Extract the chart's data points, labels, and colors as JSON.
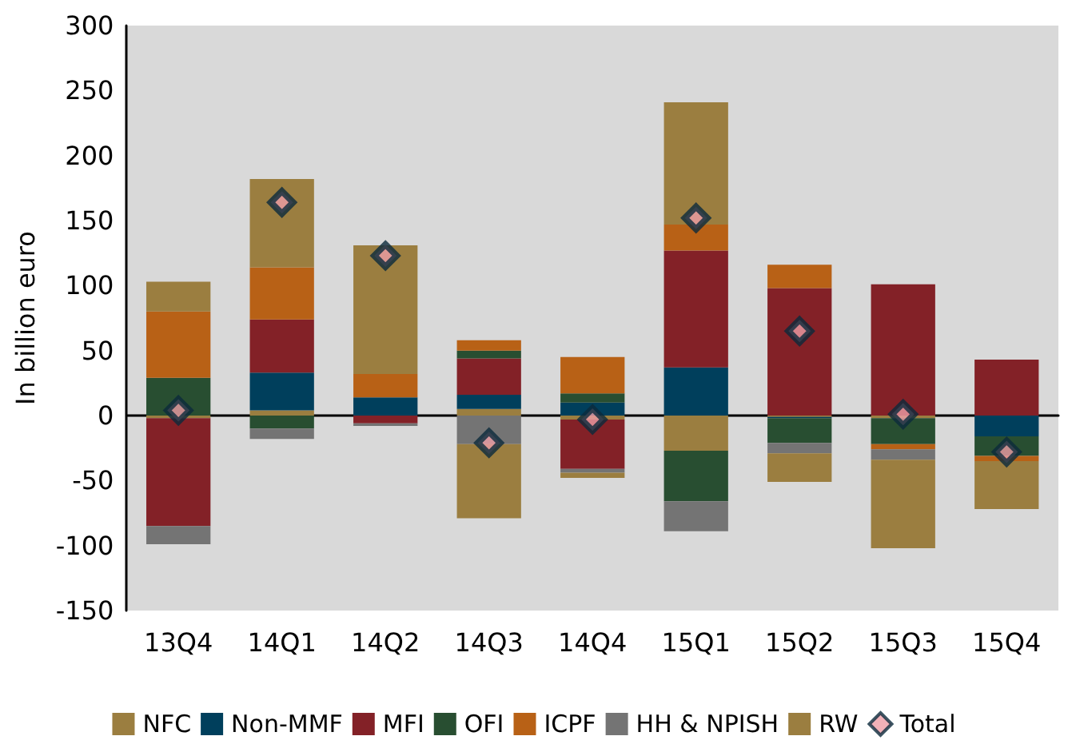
{
  "chart_data": {
    "type": "bar",
    "stacked": true,
    "ylabel": "In billion euro",
    "categories": [
      "13Q4",
      "14Q1",
      "14Q2",
      "14Q3",
      "14Q4",
      "15Q1",
      "15Q2",
      "15Q3",
      "15Q4"
    ],
    "series": [
      {
        "name": "NFC",
        "color": "#9b7e40",
        "values": [
          -2,
          4,
          0,
          5,
          -3,
          -27,
          -1,
          -2,
          0
        ]
      },
      {
        "name": "Non-MMF",
        "color": "#003f5c",
        "values": [
          0,
          29,
          14,
          11,
          10,
          37,
          -1,
          null,
          -16
        ]
      },
      {
        "name": "MFI",
        "color": "#832127",
        "values": [
          -83,
          41,
          -6,
          28,
          -38,
          90,
          98,
          101,
          43
        ]
      },
      {
        "name": "OFI",
        "color": "#284e31",
        "values": [
          29,
          -10,
          0,
          6,
          7,
          -39,
          -19,
          -20,
          -15
        ]
      },
      {
        "name": "ICPF",
        "color": "#b86116",
        "values": [
          51,
          40,
          18,
          8,
          28,
          20,
          18,
          -4,
          -4
        ]
      },
      {
        "name": "HH & NPISH",
        "color": "#747474",
        "values": [
          -14,
          -8,
          -2,
          -22,
          -3,
          -23,
          -8,
          -8,
          0
        ]
      },
      {
        "name": "RW",
        "color": "#9b7e40",
        "values": [
          23,
          68,
          99,
          -57,
          -4,
          94,
          -22,
          -68,
          -37
        ]
      },
      {
        "name": "Total",
        "type": "scatter",
        "marker": "diamond",
        "color": "#0b2a3c",
        "values": [
          4,
          164,
          123,
          -21,
          -3,
          152,
          65,
          1,
          -28
        ]
      }
    ],
    "ylim": [
      -150,
      300
    ],
    "yticks": [
      -150,
      -100,
      -50,
      0,
      50,
      100,
      150,
      200,
      250,
      300
    ],
    "legend": "bottom"
  }
}
